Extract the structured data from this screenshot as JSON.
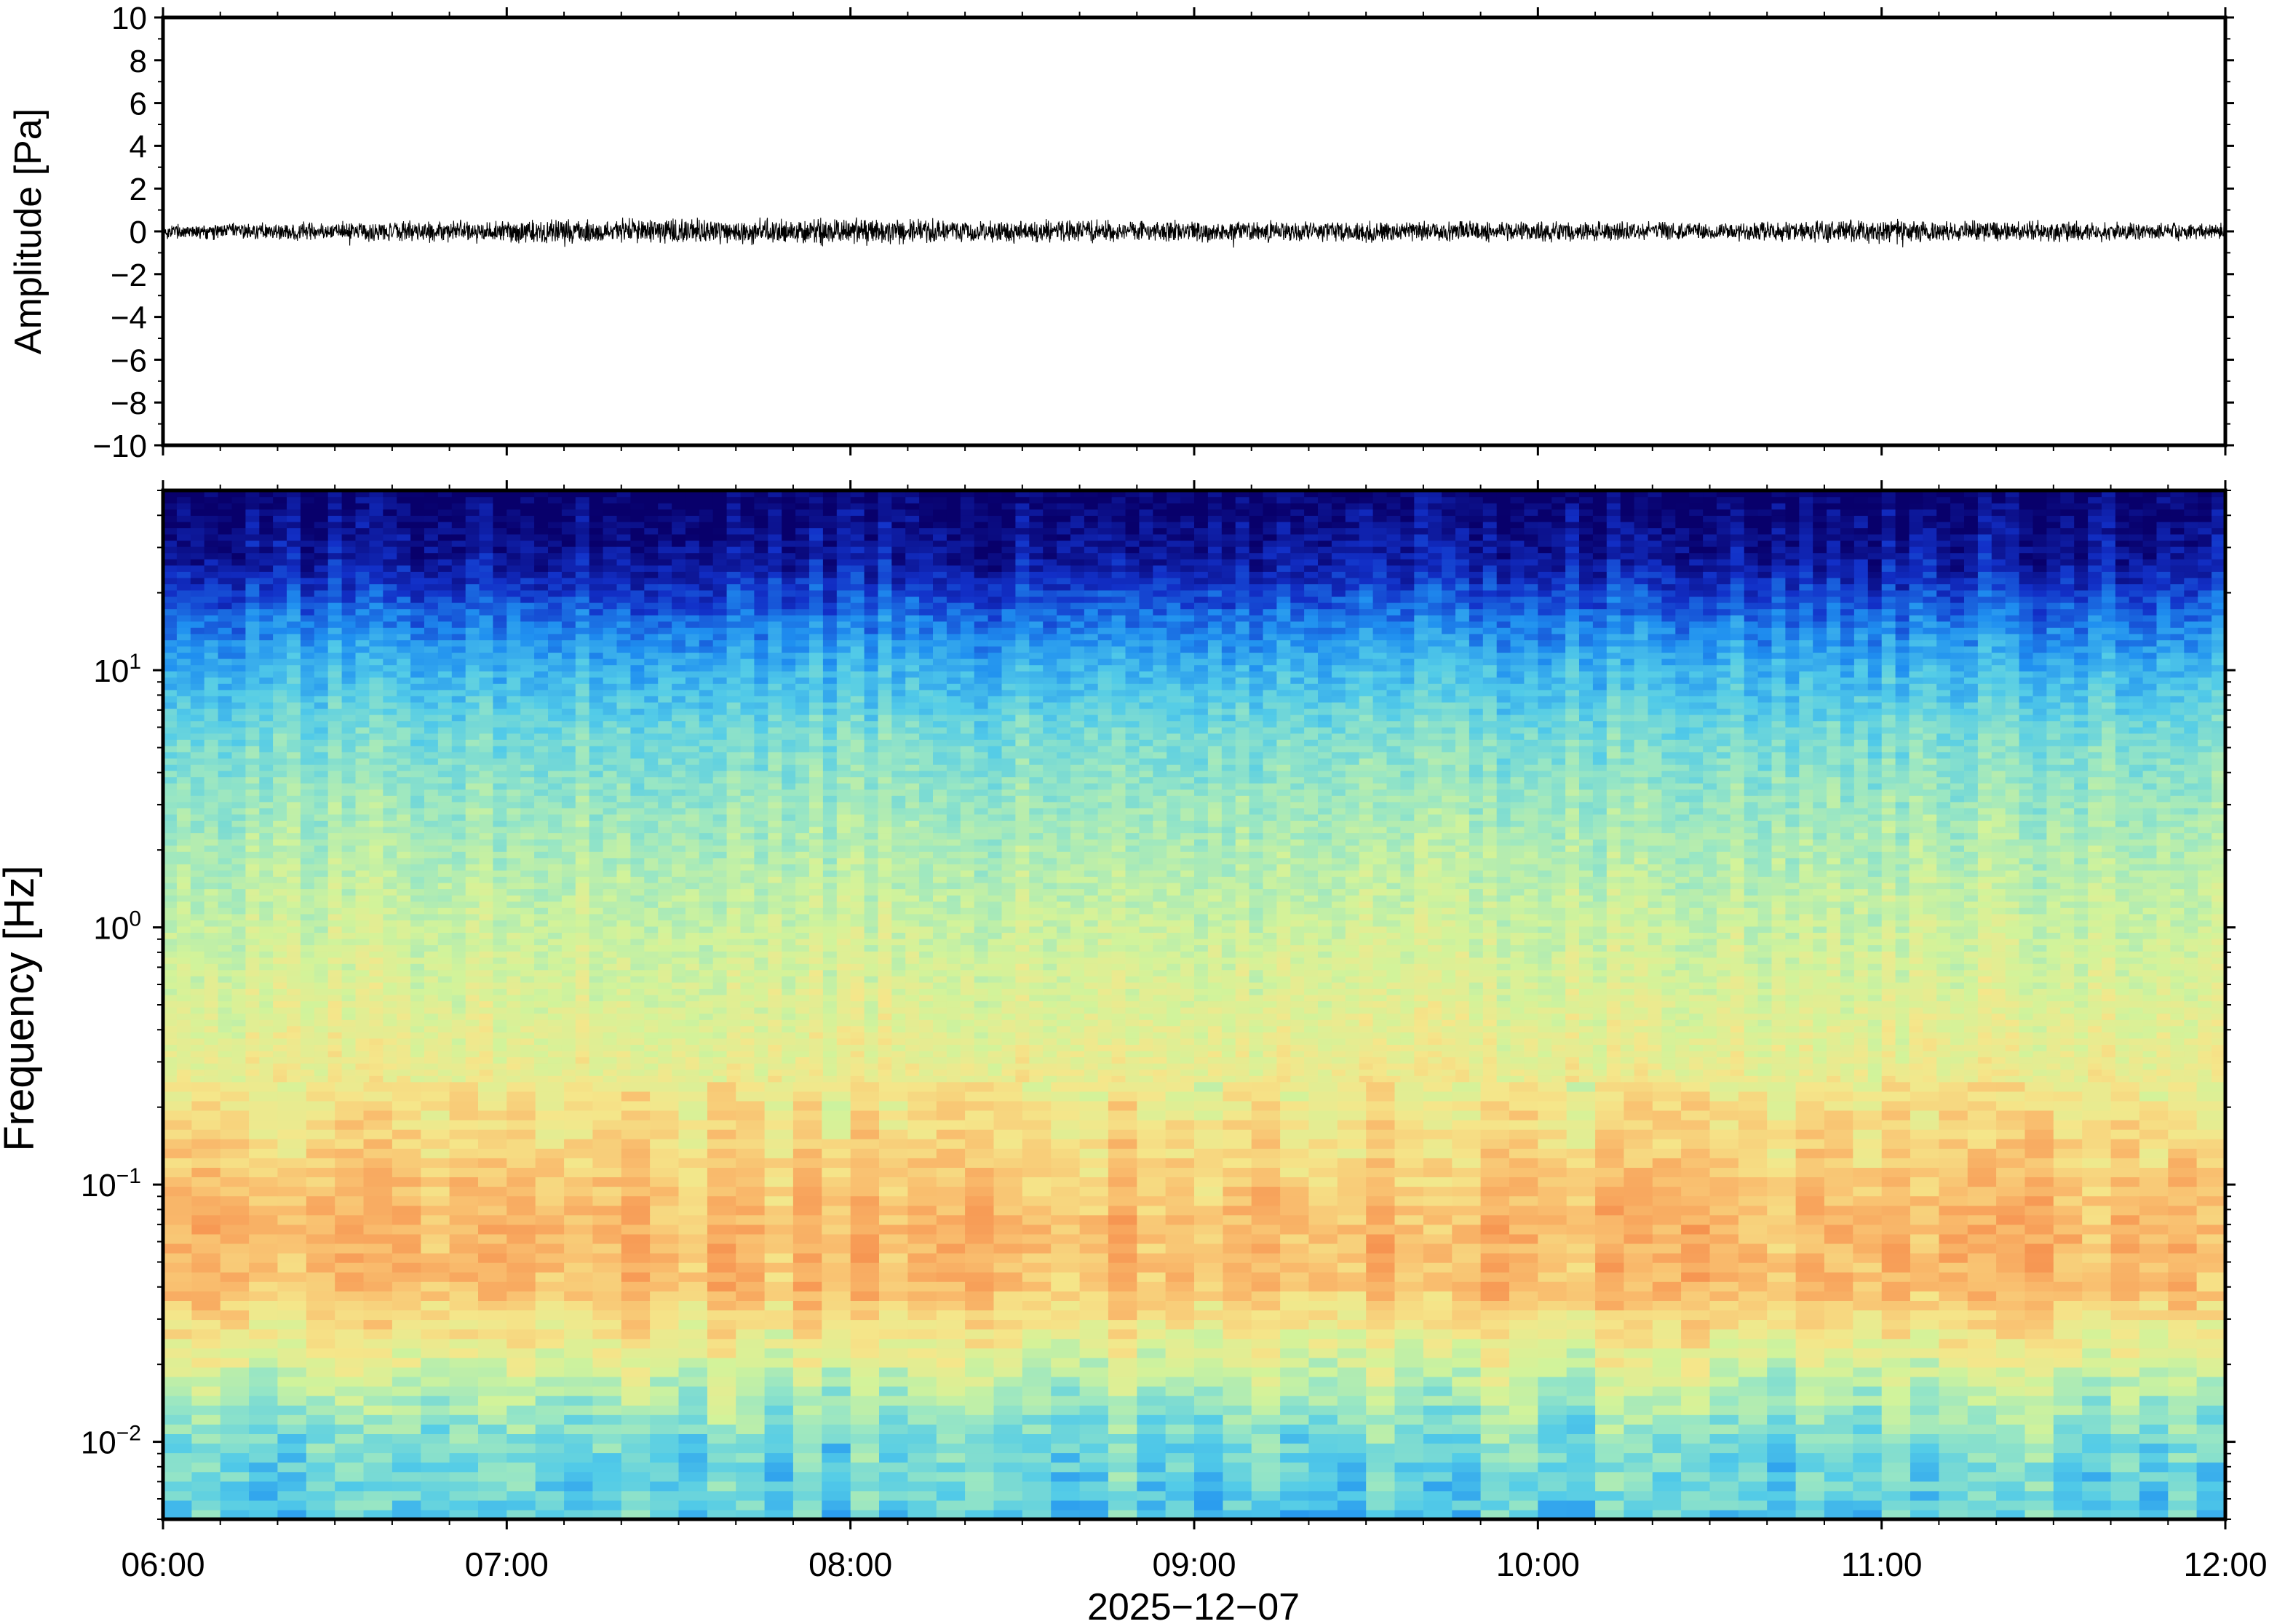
{
  "chart_data": [
    {
      "type": "line",
      "ylabel": "Amplitude [Pa]",
      "ylim": [
        -10,
        10
      ],
      "yticks": [
        "10",
        "8",
        "6",
        "4",
        "2",
        "0",
        "−2",
        "−4",
        "−6",
        "−8",
        "−10"
      ],
      "ytick_values": [
        10,
        8,
        6,
        4,
        2,
        0,
        -2,
        -4,
        -6,
        -8,
        -10
      ],
      "xlim": [
        "06:00",
        "12:00"
      ],
      "series": [
        {
          "x_minutes": [
            0,
            30,
            60,
            90,
            120,
            150,
            180,
            210,
            240,
            270,
            300,
            330,
            360
          ],
          "envelope_pa": [
            0.3,
            0.35,
            0.45,
            0.5,
            0.5,
            0.45,
            0.4,
            0.4,
            0.4,
            0.35,
            0.45,
            0.4,
            0.3
          ],
          "color": "#000000"
        }
      ]
    },
    {
      "type": "heatmap",
      "ylabel": "Frequency [Hz]",
      "yscale": "log",
      "ylim_hz": [
        0.005,
        50
      ],
      "yticks": [
        {
          "base": "10",
          "exp": "1",
          "value": 10
        },
        {
          "base": "10",
          "exp": "0",
          "value": 1
        },
        {
          "base": "10",
          "exp": "−1",
          "value": 0.1
        },
        {
          "base": "10",
          "exp": "−2",
          "value": 0.01
        }
      ],
      "colormap": [
        "#08006b",
        "#1230c8",
        "#1f8ff0",
        "#52cbe8",
        "#98e6c4",
        "#d2f39a",
        "#f5e68a",
        "#f9c070",
        "#f79a55",
        "#f07c3e"
      ],
      "description_bands_hz": {
        "0.005-0.01": "cyan-blue",
        "0.01-0.03": "green-cyan",
        "0.03-0.2": "orange",
        "0.2-2": "yellow",
        "2-10": "cyan-green",
        "10-25": "blue",
        "25-50": "dark navy"
      }
    }
  ],
  "x_axis": {
    "tick_labels": [
      "06:00",
      "07:00",
      "08:00",
      "09:00",
      "10:00",
      "11:00",
      "12:00"
    ],
    "xlabel": "2025−12−07"
  }
}
